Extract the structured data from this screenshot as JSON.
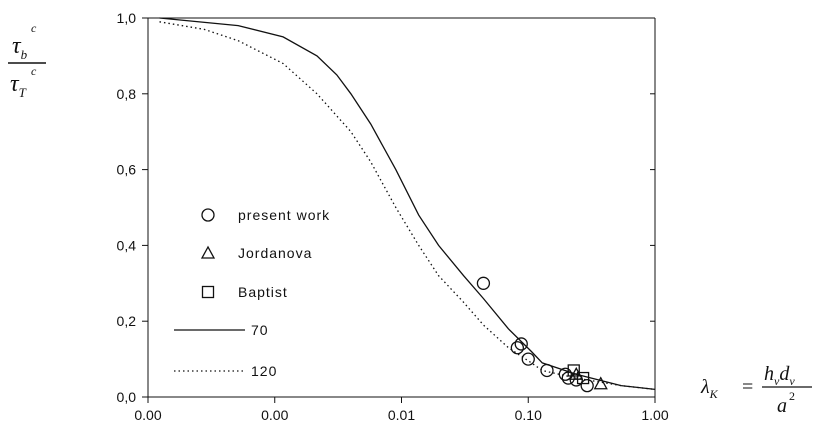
{
  "chart_data": {
    "type": "scatter",
    "x_scale": "log",
    "x_tick_labels": [
      "0.00",
      "0.00",
      "0.01",
      "0.10",
      "1.00"
    ],
    "y_tick_labels": [
      "0,0",
      "0,2",
      "0,4",
      "0,6",
      "0,8",
      "1,0"
    ],
    "ylim": [
      0,
      1
    ],
    "grid": false,
    "legend_placement": "lower-left, inside plot",
    "ylabel": {
      "numerator": "τ",
      "numerator_sub": "b",
      "numerator_sup": "c",
      "denominator": "τ",
      "denominator_sub": "T",
      "denominator_sup": "c"
    },
    "xlabel": {
      "symbol": "λ",
      "symbol_sub": "K",
      "equals": "=",
      "num_h": "h",
      "num_h_sub": "v",
      "num_d": "d",
      "num_d_sub": "v",
      "den": "a",
      "den_sup": "2"
    },
    "series": [
      {
        "name": "present work",
        "kind": "markers",
        "marker": "circle",
        "points": [
          [
            0.03,
            0.3
          ],
          [
            0.06,
            0.13
          ],
          [
            0.065,
            0.14
          ],
          [
            0.075,
            0.1
          ],
          [
            0.11,
            0.07
          ],
          [
            0.16,
            0.06
          ],
          [
            0.17,
            0.05
          ],
          [
            0.2,
            0.045
          ],
          [
            0.25,
            0.03
          ]
        ]
      },
      {
        "name": "Jordanova",
        "kind": "markers",
        "marker": "triangle",
        "points": [
          [
            0.2,
            0.06
          ],
          [
            0.33,
            0.035
          ]
        ]
      },
      {
        "name": "Baptist",
        "kind": "markers",
        "marker": "square",
        "points": [
          [
            0.19,
            0.07
          ],
          [
            0.23,
            0.05
          ]
        ]
      },
      {
        "name": "70",
        "kind": "line",
        "style": "solid",
        "points": [
          [
            4e-05,
            1.0
          ],
          [
            0.0002,
            0.98
          ],
          [
            0.0005,
            0.95
          ],
          [
            0.001,
            0.9
          ],
          [
            0.0015,
            0.85
          ],
          [
            0.002,
            0.8
          ],
          [
            0.003,
            0.72
          ],
          [
            0.005,
            0.6
          ],
          [
            0.008,
            0.48
          ],
          [
            0.012,
            0.4
          ],
          [
            0.02,
            0.32
          ],
          [
            0.03,
            0.26
          ],
          [
            0.05,
            0.18
          ],
          [
            0.08,
            0.12
          ],
          [
            0.1,
            0.09
          ],
          [
            0.2,
            0.06
          ],
          [
            0.5,
            0.03
          ],
          [
            1.0,
            0.02
          ]
        ]
      },
      {
        "name": "120",
        "kind": "line",
        "style": "dotted",
        "points": [
          [
            4e-05,
            0.99
          ],
          [
            0.0001,
            0.97
          ],
          [
            0.0002,
            0.94
          ],
          [
            0.0005,
            0.88
          ],
          [
            0.001,
            0.8
          ],
          [
            0.002,
            0.7
          ],
          [
            0.003,
            0.62
          ],
          [
            0.005,
            0.5
          ],
          [
            0.008,
            0.4
          ],
          [
            0.012,
            0.32
          ],
          [
            0.02,
            0.25
          ],
          [
            0.03,
            0.19
          ],
          [
            0.05,
            0.13
          ],
          [
            0.08,
            0.09
          ],
          [
            0.1,
            0.07
          ],
          [
            0.2,
            0.05
          ],
          [
            0.5,
            0.03
          ],
          [
            1.0,
            0.02
          ]
        ]
      }
    ]
  }
}
